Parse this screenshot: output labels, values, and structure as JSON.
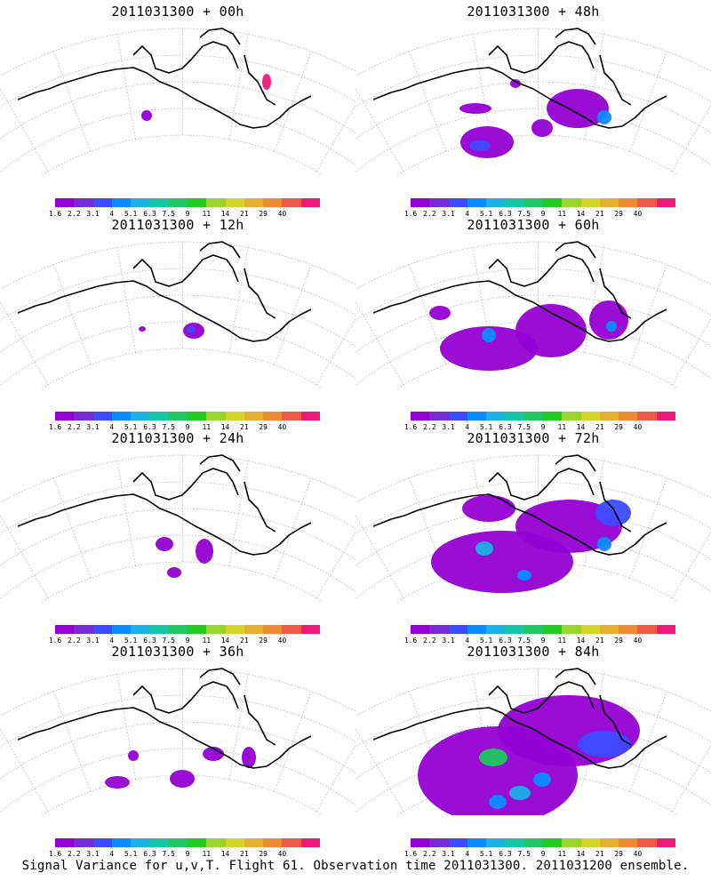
{
  "colorbar": {
    "labels": [
      "1.6",
      "2.2",
      "3.1",
      "4",
      "5.1",
      "6.3",
      "7.5",
      "9",
      "11",
      "14",
      "21",
      "29",
      "40"
    ],
    "colors": [
      "#9400d3",
      "#7a2bd6",
      "#3b4bff",
      "#0a8cff",
      "#1bb0e6",
      "#17c3a9",
      "#1fc860",
      "#22cc22",
      "#96d62a",
      "#d6d62a",
      "#e6b030",
      "#ee8a30",
      "#f05848",
      "#ef1a78"
    ]
  },
  "panels": [
    {
      "title": "2011031300 + 00h",
      "level": 0
    },
    {
      "title": "2011031300 + 48h",
      "level": 4
    },
    {
      "title": "2011031300 + 12h",
      "level": 1
    },
    {
      "title": "2011031300 + 60h",
      "level": 5
    },
    {
      "title": "2011031300 + 24h",
      "level": 2
    },
    {
      "title": "2011031300 + 72h",
      "level": 6
    },
    {
      "title": "2011031300 + 36h",
      "level": 3
    },
    {
      "title": "2011031300 + 84h",
      "level": 7
    }
  ],
  "footer": "Signal Variance for u,v,T. Flight 61. Observation time 2011031300. 2011031200 ensemble."
}
